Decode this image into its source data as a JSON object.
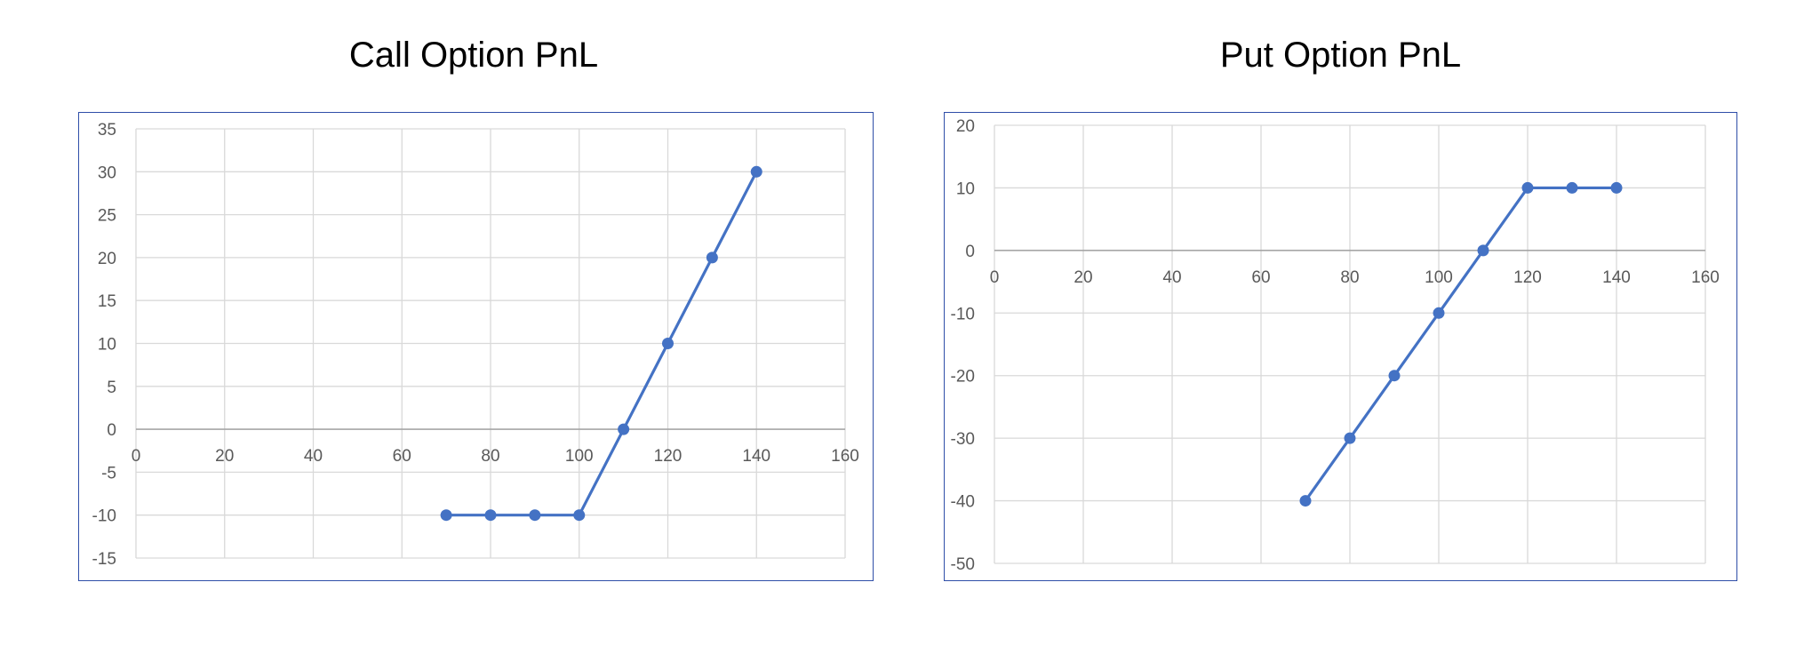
{
  "chart_data": [
    {
      "type": "scatter",
      "title": "Call Option PnL",
      "x": [
        70,
        80,
        90,
        100,
        110,
        120,
        130,
        140
      ],
      "y": [
        -10,
        -10,
        -10,
        -10,
        0,
        10,
        20,
        30
      ],
      "xlim": [
        0,
        160
      ],
      "ylim": [
        -15,
        35
      ],
      "xticks": [
        0,
        20,
        40,
        60,
        80,
        100,
        120,
        140,
        160
      ],
      "yticks": [
        35,
        30,
        25,
        20,
        15,
        10,
        5,
        0,
        -5,
        -10,
        -15
      ],
      "x_tick_labels": [
        "0",
        "20",
        "40",
        "60",
        "80",
        "100",
        "120",
        "140",
        "160"
      ],
      "y_tick_labels": [
        "35",
        "30",
        "25",
        "20",
        "15",
        "10",
        "5",
        "0",
        "-5",
        "-10",
        "-15"
      ],
      "grid": true,
      "connected": true,
      "color": "#4472c4",
      "axis_color": "#a6a6a6",
      "grid_color": "#d9d9d9",
      "border_color": "#2f4ea8",
      "legend": "none"
    },
    {
      "type": "scatter",
      "title": "Put Option PnL",
      "x": [
        70,
        80,
        90,
        100,
        110,
        120,
        130,
        140
      ],
      "y": [
        -40,
        -30,
        -20,
        -10,
        0,
        10,
        10,
        10
      ],
      "xlim": [
        0,
        160
      ],
      "ylim": [
        -50,
        20
      ],
      "xticks": [
        0,
        20,
        40,
        60,
        80,
        100,
        120,
        140,
        160
      ],
      "yticks": [
        20,
        10,
        0,
        -10,
        -20,
        -30,
        -40,
        -50
      ],
      "x_tick_labels": [
        "0",
        "20",
        "40",
        "60",
        "80",
        "100",
        "120",
        "140",
        "160"
      ],
      "y_tick_labels": [
        "20",
        "10",
        "0",
        "-10",
        "-20",
        "-30",
        "-40",
        "-50"
      ],
      "grid": true,
      "connected": true,
      "color": "#4472c4",
      "axis_color": "#a6a6a6",
      "grid_color": "#d9d9d9",
      "border_color": "#2f4ea8",
      "legend": "none"
    }
  ]
}
